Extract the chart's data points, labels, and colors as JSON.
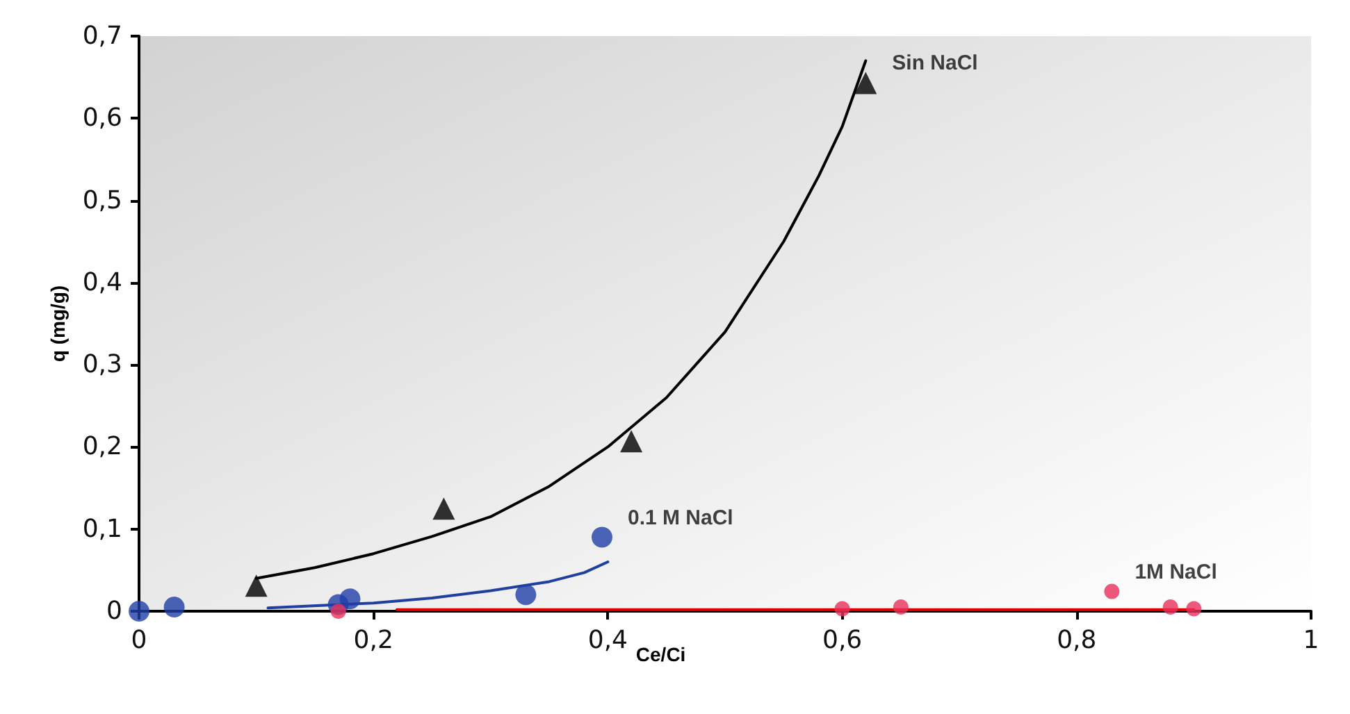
{
  "chart_data": {
    "type": "scatter",
    "xlabel": "Ce/Ci",
    "ylabel": "q (mg/g)",
    "xlim": [
      0,
      1
    ],
    "xticks": [
      0,
      {
        "value": 0.2,
        "label": "0,2"
      },
      {
        "value": 0.4,
        "label": "0,4"
      },
      {
        "value": 0.6,
        "label": "0,6"
      },
      {
        "value": 0.8,
        "label": "0,8"
      },
      1
    ],
    "ylim": [
      0,
      0.7
    ],
    "yticks": [
      0,
      {
        "value": 0.1,
        "label": "0,1"
      },
      {
        "value": 0.2,
        "label": "0,2"
      },
      {
        "value": 0.3,
        "label": "0,3"
      },
      {
        "value": 0.4,
        "label": "0,4"
      },
      {
        "value": 0.5,
        "label": "0,5"
      },
      {
        "value": 0.6,
        "label": "0,6"
      },
      {
        "value": 0.7,
        "label": "0,7"
      }
    ],
    "grid": false,
    "legend": false,
    "series": [
      {
        "type": "line",
        "marker": "none",
        "color": "#000000",
        "x": [
          0.1,
          0.15,
          0.2,
          0.25,
          0.3,
          0.35,
          0.4,
          0.45,
          0.5,
          0.55,
          0.58,
          0.6,
          0.62
        ],
        "values": [
          0.04,
          0.053,
          0.07,
          0.091,
          0.115,
          0.152,
          0.2,
          0.26,
          0.34,
          0.45,
          0.53,
          0.59,
          0.67
        ]
      },
      {
        "type": "line",
        "marker": "none",
        "color": "#2040a0",
        "x": [
          0.11,
          0.2,
          0.25,
          0.3,
          0.35,
          0.38,
          0.4
        ],
        "values": [
          0.004,
          0.01,
          0.016,
          0.025,
          0.036,
          0.047,
          0.06
        ]
      },
      {
        "type": "line",
        "marker": "none",
        "color": "#e00000",
        "x": [
          0.22,
          0.9
        ],
        "values": [
          0.002,
          0.002
        ]
      },
      {
        "name": "Sin NaCl",
        "marker": "triangle",
        "color": "#000000",
        "x": [
          0.1,
          0.26,
          0.42,
          0.62
        ],
        "values": [
          0.031,
          0.125,
          0.207,
          0.643
        ]
      },
      {
        "name": "0.1 M NaCl",
        "marker": "circle",
        "color": "#1f3fa8",
        "x": [
          0,
          0.03,
          0.17,
          0.18,
          0.33,
          0.395
        ],
        "values": [
          0,
          0.005,
          0.008,
          0.015,
          0.02,
          0.09
        ]
      },
      {
        "name": "1M NaCl",
        "marker": "circle",
        "color": "#e8305a",
        "x": [
          0.17,
          0.6,
          0.65,
          0.83,
          0.88,
          0.9
        ],
        "values": [
          0,
          0.003,
          0.005,
          0.024,
          0.005,
          0.003
        ]
      }
    ]
  }
}
